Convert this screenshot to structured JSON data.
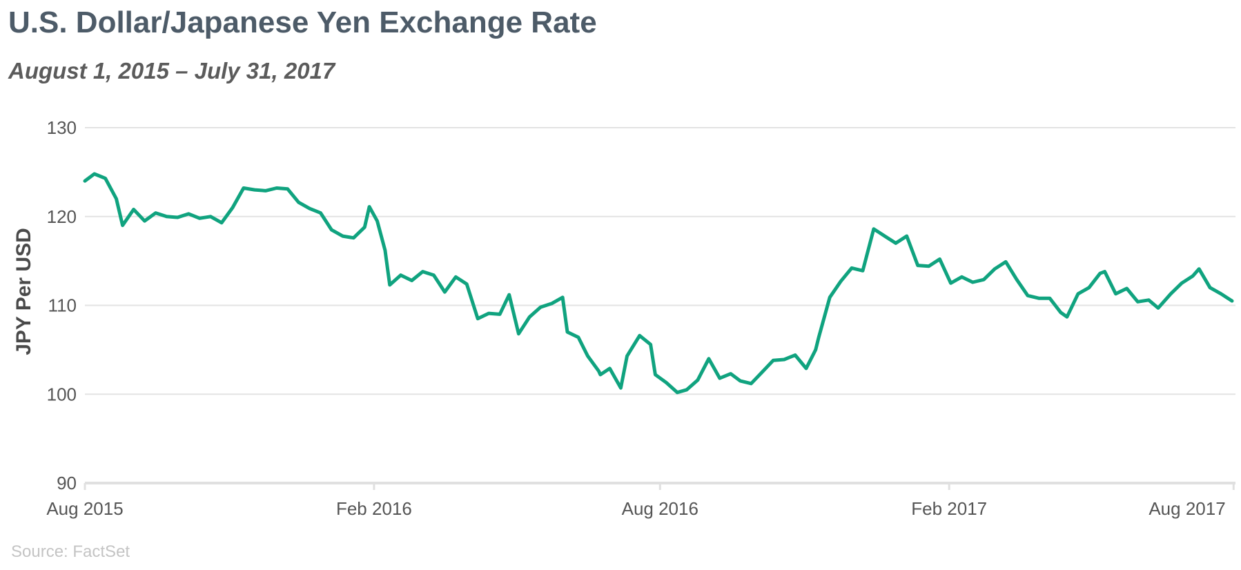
{
  "title": "U.S. Dollar/Japanese Yen Exchange Rate",
  "subtitle": "August 1, 2015 – July 31, 2017",
  "source": "Source: FactSet",
  "colors": {
    "line": "#10a37f",
    "grid": "#e3e3e3",
    "axis": "#e0e0e0",
    "title": "#4d5b68"
  },
  "chart_data": {
    "type": "line",
    "title": "U.S. Dollar/Japanese Yen Exchange Rate",
    "subtitle": "August 1, 2015 – July 31, 2017",
    "xlabel": "",
    "ylabel": "JPY Per USD",
    "ylim": [
      90,
      130
    ],
    "xlim": [
      "2015-08-01",
      "2017-07-31"
    ],
    "yticks": [
      90,
      100,
      110,
      120,
      130
    ],
    "xticks": [
      {
        "label": "Aug 2015",
        "date": "2015-08-01"
      },
      {
        "label": "Feb 2016",
        "date": "2016-02-01"
      },
      {
        "label": "Aug 2016",
        "date": "2016-08-01"
      },
      {
        "label": "Feb 2017",
        "date": "2017-02-01"
      },
      {
        "label": "Aug 2017",
        "date": "2017-08-01"
      }
    ],
    "grid": true,
    "legend": "none",
    "series": [
      {
        "x": [
          "2015-08-01",
          "2015-08-07",
          "2015-08-14",
          "2015-08-21",
          "2015-08-25",
          "2015-09-01",
          "2015-09-08",
          "2015-09-15",
          "2015-09-22",
          "2015-09-29",
          "2015-10-06",
          "2015-10-13",
          "2015-10-20",
          "2015-10-27",
          "2015-11-03",
          "2015-11-10",
          "2015-11-17",
          "2015-11-24",
          "2015-12-01",
          "2015-12-08",
          "2015-12-15",
          "2015-12-22",
          "2015-12-29",
          "2016-01-05",
          "2016-01-12",
          "2016-01-19",
          "2016-01-26",
          "2016-01-29",
          "2016-02-03",
          "2016-02-08",
          "2016-02-11",
          "2016-02-18",
          "2016-02-25",
          "2016-03-03",
          "2016-03-10",
          "2016-03-17",
          "2016-03-24",
          "2016-03-31",
          "2016-04-07",
          "2016-04-14",
          "2016-04-21",
          "2016-04-27",
          "2016-05-03",
          "2016-05-10",
          "2016-05-17",
          "2016-05-24",
          "2016-05-31",
          "2016-06-03",
          "2016-06-10",
          "2016-06-16",
          "2016-06-23",
          "2016-06-24",
          "2016-06-30",
          "2016-07-07",
          "2016-07-11",
          "2016-07-19",
          "2016-07-26",
          "2016-07-29",
          "2016-08-05",
          "2016-08-12",
          "2016-08-18",
          "2016-08-25",
          "2016-09-01",
          "2016-09-08",
          "2016-09-15",
          "2016-09-21",
          "2016-09-28",
          "2016-10-05",
          "2016-10-12",
          "2016-10-19",
          "2016-10-26",
          "2016-11-02",
          "2016-11-08",
          "2016-11-10",
          "2016-11-17",
          "2016-11-24",
          "2016-12-01",
          "2016-12-08",
          "2016-12-15",
          "2016-12-22",
          "2016-12-29",
          "2017-01-05",
          "2017-01-12",
          "2017-01-19",
          "2017-01-26",
          "2017-02-02",
          "2017-02-09",
          "2017-02-16",
          "2017-02-23",
          "2017-03-02",
          "2017-03-09",
          "2017-03-16",
          "2017-03-23",
          "2017-03-30",
          "2017-04-06",
          "2017-04-13",
          "2017-04-17",
          "2017-04-24",
          "2017-05-01",
          "2017-05-08",
          "2017-05-11",
          "2017-05-18",
          "2017-05-25",
          "2017-06-01",
          "2017-06-08",
          "2017-06-14",
          "2017-06-22",
          "2017-06-29",
          "2017-07-06",
          "2017-07-10",
          "2017-07-17",
          "2017-07-24",
          "2017-07-31"
        ],
        "y": [
          124.0,
          124.8,
          124.3,
          122.0,
          119.0,
          120.8,
          119.5,
          120.4,
          120.0,
          119.9,
          120.3,
          119.8,
          120.0,
          119.3,
          121.0,
          123.2,
          123.0,
          122.9,
          123.2,
          123.1,
          121.6,
          120.9,
          120.4,
          118.5,
          117.8,
          117.6,
          118.8,
          121.1,
          119.5,
          116.2,
          112.3,
          113.4,
          112.8,
          113.8,
          113.4,
          111.5,
          113.2,
          112.4,
          108.5,
          109.1,
          109.0,
          111.2,
          106.8,
          108.7,
          109.8,
          110.2,
          110.9,
          107.0,
          106.4,
          104.3,
          102.6,
          102.2,
          102.9,
          100.7,
          104.3,
          106.6,
          105.6,
          102.2,
          101.3,
          100.2,
          100.5,
          101.6,
          104.0,
          101.8,
          102.3,
          101.5,
          101.2,
          102.5,
          103.8,
          103.9,
          104.4,
          102.9,
          105.0,
          106.4,
          110.9,
          112.7,
          114.2,
          113.9,
          118.6,
          117.8,
          117.0,
          117.8,
          114.5,
          114.4,
          115.2,
          112.5,
          113.2,
          112.6,
          112.9,
          114.1,
          114.9,
          112.9,
          111.1,
          110.8,
          110.8,
          109.2,
          108.7,
          111.3,
          112.0,
          113.6,
          113.8,
          111.3,
          111.9,
          110.4,
          110.6,
          109.7,
          111.3,
          112.5,
          113.3,
          114.1,
          112.0,
          111.3,
          110.5
        ]
      }
    ]
  }
}
